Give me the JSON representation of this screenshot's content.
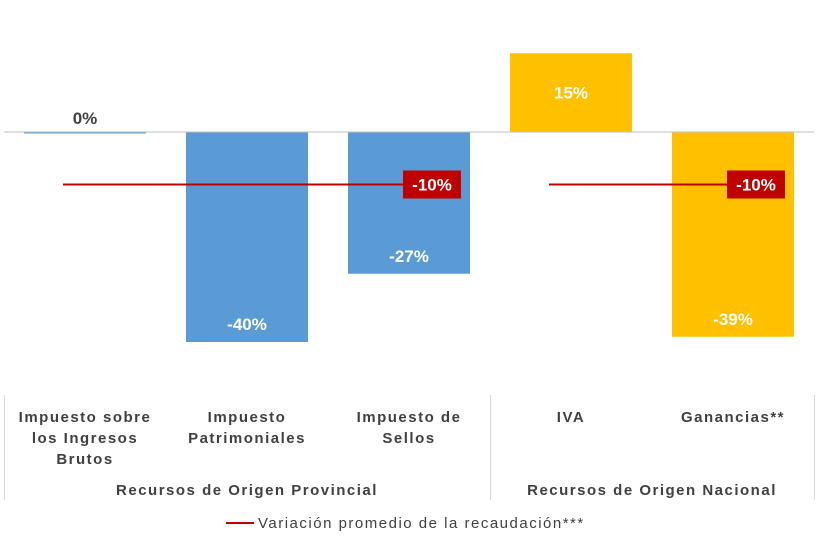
{
  "chart_data": {
    "type": "bar",
    "categories": [
      "Impuesto sobre los Ingresos Brutos",
      "Impuesto Patrimoniales",
      "Impuesto de Sellos",
      "IVA",
      "Ganancias**"
    ],
    "category_lines": [
      [
        "Impuesto sobre",
        "los Ingresos",
        "Brutos"
      ],
      [
        "Impuesto",
        "Patrimoniales"
      ],
      [
        "Impuesto de",
        "Sellos"
      ],
      [
        "IVA"
      ],
      [
        "Ganancias**"
      ]
    ],
    "values": [
      0,
      -40,
      -27,
      15,
      -39
    ],
    "data_labels": [
      "0%",
      "-40%",
      "-27%",
      "15%",
      "-39%"
    ],
    "groups": [
      {
        "label": "Recursos de Origen Provincial",
        "categories": [
          0,
          1,
          2
        ],
        "color": "#5B9BD5",
        "average": -10,
        "average_label": "-10%"
      },
      {
        "label": "Recursos de Origen Nacional",
        "categories": [
          3,
          4
        ],
        "color": "#FFC000",
        "average": -10,
        "average_label": "-10%"
      }
    ],
    "label_colors": [
      "#404040",
      "#ffffff",
      "#ffffff",
      "#ffffff",
      "#ffffff"
    ],
    "ylim": [
      -40,
      15
    ],
    "average_line_color": "#C00000",
    "legend": {
      "position": "bottom",
      "label": "Variación promedio de la recaudación***"
    },
    "grid": false
  }
}
